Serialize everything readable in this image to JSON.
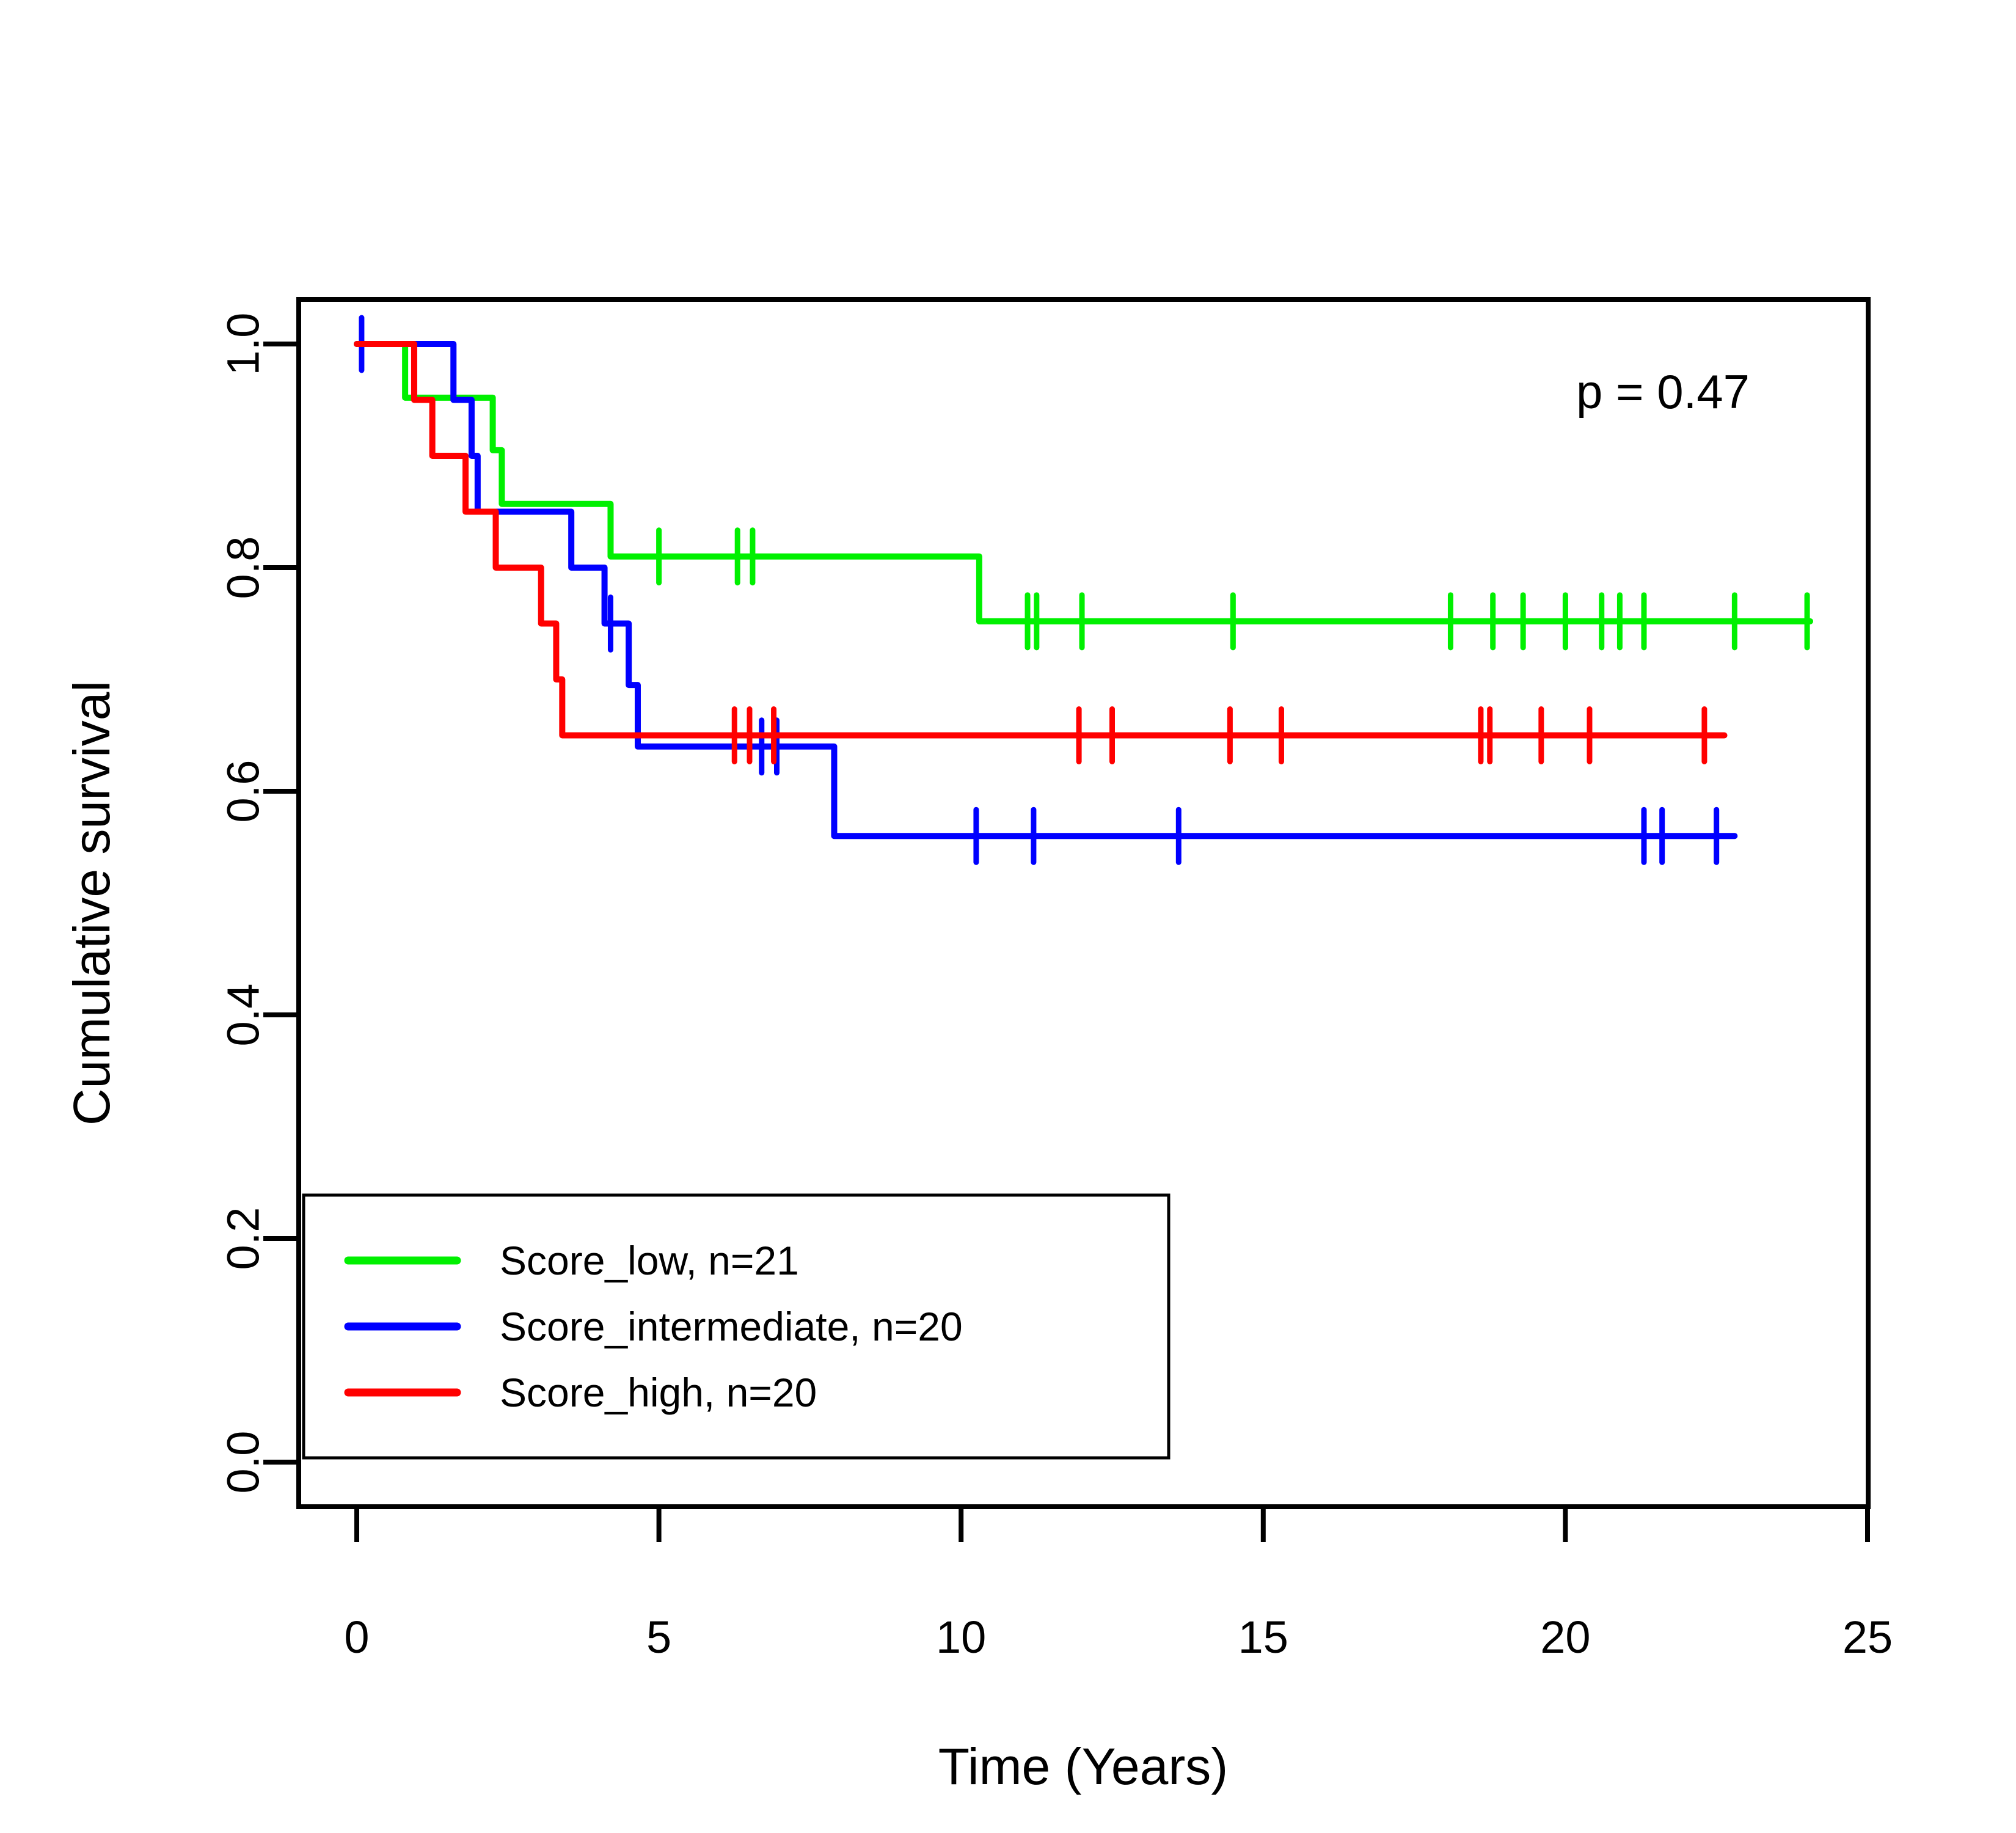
{
  "figure": {
    "background": "#ffffff",
    "p_value_annotation": "p = 0.47"
  },
  "chart_data": {
    "type": "line",
    "subtype": "kaplan-meier-step-curves",
    "title": "",
    "xlabel": "Time (Years)",
    "ylabel": "Cumulative survival",
    "xlim": [
      0,
      25
    ],
    "ylim": [
      0.0,
      1.0
    ],
    "x_ticks": [
      0,
      5,
      10,
      15,
      20,
      25
    ],
    "y_ticks": [
      {
        "value": 0.0,
        "label": "0.0"
      },
      {
        "value": 0.2,
        "label": "0.2"
      },
      {
        "value": 0.4,
        "label": "0.4"
      },
      {
        "value": 0.6,
        "label": "0.6"
      },
      {
        "value": 0.8,
        "label": "0.8"
      },
      {
        "value": 1.0,
        "label": "1.0"
      }
    ],
    "grid": false,
    "legend_position": "bottom-left",
    "annotation": {
      "text": "p = 0.47"
    },
    "axis_color": "#000000",
    "series": [
      {
        "id": "score-low",
        "label": "Score_low, n=21",
        "n": 21,
        "color": "#00F000",
        "start": [
          0,
          1.0
        ],
        "drops": [
          [
            0.8,
            0.952
          ],
          [
            2.25,
            0.905
          ],
          [
            2.4,
            0.857
          ],
          [
            4.2,
            0.81
          ],
          [
            10.3,
            0.752
          ]
        ],
        "end_time": 24.05,
        "censor_times": [
          5.0,
          6.3,
          6.55,
          11.1,
          11.25,
          12.0,
          14.5,
          18.1,
          18.8,
          19.3,
          20.0,
          20.6,
          20.9,
          21.3,
          22.8,
          24.0
        ]
      },
      {
        "id": "score-intermediate",
        "label": "Score_intermediate, n=20",
        "n": 20,
        "color": "#0000FF",
        "start": [
          0,
          1.0
        ],
        "drops": [
          [
            1.6,
            0.95
          ],
          [
            1.9,
            0.9
          ],
          [
            2.0,
            0.85
          ],
          [
            3.55,
            0.8
          ],
          [
            4.1,
            0.75
          ],
          [
            4.5,
            0.695
          ],
          [
            4.65,
            0.64
          ],
          [
            7.9,
            0.56
          ]
        ],
        "end_time": 22.8,
        "censor_times": [
          0.08,
          4.2,
          6.7,
          6.95,
          10.25,
          11.2,
          13.6,
          21.3,
          21.6,
          22.5
        ]
      },
      {
        "id": "score-high",
        "label": "Score_high, n=20",
        "n": 20,
        "color": "#FF0000",
        "start": [
          0,
          1.0
        ],
        "drops": [
          [
            0.95,
            0.95
          ],
          [
            1.25,
            0.9
          ],
          [
            1.8,
            0.85
          ],
          [
            2.3,
            0.8
          ],
          [
            3.05,
            0.75
          ],
          [
            3.3,
            0.7
          ],
          [
            3.4,
            0.65
          ]
        ],
        "end_time": 22.63,
        "censor_times": [
          6.25,
          6.5,
          6.9,
          11.95,
          12.5,
          14.45,
          15.3,
          18.6,
          18.75,
          19.6,
          20.4,
          22.3
        ]
      }
    ]
  }
}
